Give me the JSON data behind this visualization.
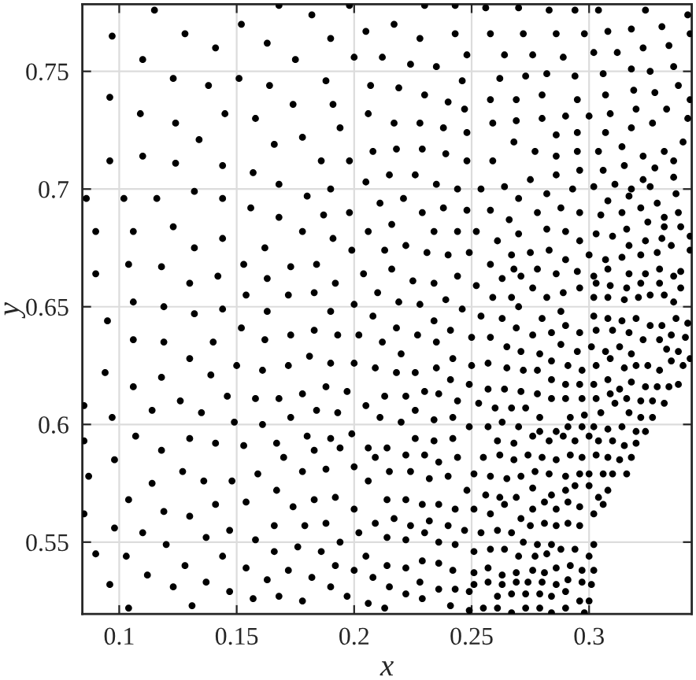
{
  "chart_data": {
    "type": "scatter",
    "xlabel": "x",
    "ylabel": "y",
    "color": "#000000",
    "marker": "circle",
    "grid": true,
    "xlim": [
      0.0843,
      0.3437
    ],
    "ylim": [
      0.5195,
      0.7785
    ],
    "xticks": [
      0.1,
      0.15,
      0.2,
      0.25,
      0.3
    ],
    "yticks": [
      0.55,
      0.6,
      0.65,
      0.7,
      0.75
    ],
    "x": [
      0.115,
      0.097,
      0.128,
      0.11,
      0.141,
      0.152,
      0.163,
      0.168,
      0.096,
      0.123,
      0.138,
      0.151,
      0.164,
      0.109,
      0.124,
      0.145,
      0.158,
      0.134,
      0.166,
      0.096,
      0.11,
      0.124,
      0.144,
      0.157,
      0.168,
      0.086,
      0.102,
      0.116,
      0.132,
      0.144,
      0.156,
      0.168,
      0.09,
      0.106,
      0.123,
      0.132,
      0.144,
      0.162,
      0.104,
      0.118,
      0.153,
      0.09,
      0.13,
      0.142,
      0.163,
      0.106,
      0.119,
      0.154,
      0.132,
      0.144,
      0.163,
      0.095,
      0.152,
      0.106,
      0.119,
      0.14,
      0.162,
      0.13,
      0.094,
      0.118,
      0.139,
      0.15,
      0.161,
      0.085,
      0.106,
      0.114,
      0.126,
      0.135,
      0.146,
      0.158,
      0.168,
      0.097,
      0.149,
      0.161,
      0.085,
      0.107,
      0.118,
      0.13,
      0.141,
      0.153,
      0.167,
      0.098,
      0.087,
      0.127,
      0.114,
      0.136,
      0.148,
      0.159,
      0.167,
      0.104,
      0.141,
      0.154,
      0.085,
      0.119,
      0.13,
      0.098,
      0.11,
      0.166,
      0.137,
      0.147,
      0.158,
      0.12,
      0.09,
      0.103,
      0.144,
      0.166,
      0.128,
      0.154,
      0.112,
      0.096,
      0.137,
      0.163,
      0.123,
      0.147,
      0.157,
      0.168,
      0.104,
      0.131,
      0.182,
      0.198,
      0.23,
      0.243,
      0.19,
      0.205,
      0.217,
      0.228,
      0.243,
      0.175,
      0.2,
      0.212,
      0.224,
      0.235,
      0.248,
      0.188,
      0.207,
      0.219,
      0.23,
      0.24,
      0.246,
      0.174,
      0.191,
      0.206,
      0.217,
      0.228,
      0.238,
      0.247,
      0.248,
      0.178,
      0.194,
      0.186,
      0.198,
      0.208,
      0.218,
      0.229,
      0.239,
      0.248,
      0.19,
      0.205,
      0.215,
      0.226,
      0.235,
      0.244,
      0.254,
      0.18,
      0.187,
      0.198,
      0.211,
      0.221,
      0.229,
      0.238,
      0.248,
      0.178,
      0.191,
      0.206,
      0.216,
      0.234,
      0.244,
      0.252,
      0.213,
      0.222,
      0.199,
      0.231,
      0.24,
      0.249,
      0.173,
      0.184,
      0.204,
      0.216,
      0.225,
      0.234,
      0.244,
      0.252,
      0.192,
      0.172,
      0.183,
      0.21,
      0.219,
      0.228,
      0.239,
      0.246,
      0.254,
      0.2,
      0.19,
      0.208,
      0.218,
      0.234,
      0.241,
      0.183,
      0.173,
      0.193,
      0.202,
      0.212,
      0.227,
      0.235,
      0.172,
      0.181,
      0.19,
      0.2,
      0.209,
      0.22,
      0.218,
      0.226,
      0.235,
      0.242,
      0.241,
      0.178,
      0.188,
      0.197,
      0.205,
      0.213,
      0.222,
      0.23,
      0.236,
      0.244,
      0.173,
      0.184,
      0.193,
      0.211,
      0.22,
      0.226,
      0.234,
      0.242,
      0.18,
      0.19,
      0.199,
      0.206,
      0.214,
      0.222,
      0.226,
      0.234,
      0.242,
      0.17,
      0.183,
      0.194,
      0.209,
      0.23,
      0.236,
      0.244,
      0.178,
      0.188,
      0.2,
      0.215,
      0.224,
      0.206,
      0.232,
      0.24,
      0.183,
      0.192,
      0.214,
      0.222,
      0.229,
      0.236,
      0.243,
      0.174,
      0.2,
      0.217,
      0.209,
      0.224,
      0.232,
      0.24,
      0.179,
      0.188,
      0.202,
      0.214,
      0.194,
      0.176,
      0.186,
      0.205,
      0.222,
      0.23,
      0.236,
      0.243,
      0.192,
      0.172,
      0.2,
      0.214,
      0.222,
      0.229,
      0.236,
      0.242,
      0.182,
      0.208,
      0.228,
      0.19,
      0.215,
      0.236,
      0.243,
      0.178,
      0.197,
      0.206,
      0.222,
      0.229,
      0.213,
      0.241,
      0.256,
      0.27,
      0.283,
      0.294,
      0.304,
      0.324,
      0.342,
      0.258,
      0.272,
      0.286,
      0.298,
      0.308,
      0.318,
      0.331,
      0.343,
      0.323,
      0.334,
      0.264,
      0.276,
      0.289,
      0.302,
      0.312,
      0.318,
      0.326,
      0.336,
      0.262,
      0.273,
      0.282,
      0.294,
      0.306,
      0.338,
      0.258,
      0.269,
      0.28,
      0.295,
      0.307,
      0.319,
      0.328,
      0.343,
      0.259,
      0.269,
      0.28,
      0.29,
      0.3,
      0.309,
      0.32,
      0.333,
      0.342,
      0.286,
      0.295,
      0.307,
      0.318,
      0.327,
      0.268,
      0.277,
      0.286,
      0.295,
      0.304,
      0.314,
      0.323,
      0.332,
      0.34,
      0.259,
      0.275,
      0.286,
      0.296,
      0.306,
      0.315,
      0.328,
      0.336,
      0.323,
      0.336,
      0.264,
      0.293,
      0.302,
      0.311,
      0.318,
      0.326,
      0.337,
      0.282,
      0.27,
      0.308,
      0.317,
      0.329,
      0.258,
      0.278,
      0.288,
      0.296,
      0.305,
      0.314,
      0.322,
      0.332,
      0.338,
      0.266,
      0.27,
      0.282,
      0.29,
      0.303,
      0.31,
      0.316,
      0.325,
      0.332,
      0.339,
      0.261,
      0.296,
      0.317,
      0.324,
      0.331,
      0.343,
      0.335,
      0.267,
      0.275,
      0.283,
      0.29,
      0.3,
      0.307,
      0.314,
      0.322,
      0.329,
      0.343,
      0.258,
      0.268,
      0.278,
      0.286,
      0.295,
      0.302,
      0.308,
      0.317,
      0.324,
      0.33,
      0.336,
      0.339,
      0.263,
      0.271,
      0.259,
      0.267,
      0.276,
      0.282,
      0.289,
      0.296,
      0.303,
      0.309,
      0.316,
      0.322,
      0.33,
      0.339,
      0.308,
      0.315,
      0.321,
      0.326,
      0.332,
      0.336,
      0.302,
      0.27,
      0.288,
      0.263,
      0.28,
      0.302,
      0.308,
      0.314,
      0.32,
      0.326,
      0.331,
      0.337,
      0.342,
      0.25,
      0.258,
      0.269,
      0.276,
      0.284,
      0.29,
      0.296,
      0.303,
      0.31,
      0.317,
      0.323,
      0.33,
      0.335,
      0.341,
      0.265,
      0.271,
      0.279,
      0.288,
      0.295,
      0.301,
      0.307,
      0.313,
      0.318,
      0.333,
      0.338,
      0.343,
      0.25,
      0.257,
      0.265,
      0.272,
      0.278,
      0.284,
      0.291,
      0.297,
      0.303,
      0.309,
      0.315,
      0.32,
      0.325,
      0.33,
      0.335,
      0.34,
      0.249,
      0.257,
      0.264,
      0.271,
      0.278,
      0.284,
      0.29,
      0.296,
      0.302,
      0.308,
      0.313,
      0.318,
      0.324,
      0.329,
      0.334,
      0.338,
      0.253,
      0.26,
      0.267,
      0.273,
      0.279,
      0.284,
      0.29,
      0.297,
      0.303,
      0.309,
      0.311,
      0.316,
      0.322,
      0.327,
      0.332,
      0.292,
      0.298,
      0.305,
      0.317,
      0.322,
      0.327,
      0.249,
      0.257,
      0.263,
      0.27,
      0.279,
      0.286,
      0.291,
      0.297,
      0.302,
      0.308,
      0.314,
      0.32,
      0.324,
      0.261,
      0.268,
      0.276,
      0.283,
      0.289,
      0.294,
      0.3,
      0.304,
      0.31,
      0.315,
      0.32,
      0.255,
      0.262,
      0.268,
      0.274,
      0.28,
      0.286,
      0.292,
      0.297,
      0.303,
      0.308,
      0.313,
      0.318,
      0.251,
      0.258,
      0.265,
      0.271,
      0.277,
      0.283,
      0.29,
      0.296,
      0.3,
      0.306,
      0.31,
      0.316,
      0.248,
      0.256,
      0.262,
      0.269,
      0.276,
      0.284,
      0.29,
      0.294,
      0.3,
      0.304,
      0.308,
      0.251,
      0.258,
      0.264,
      0.271,
      0.276,
      0.281,
      0.286,
      0.291,
      0.296,
      0.302,
      0.306,
      0.247,
      0.254,
      0.261,
      0.267,
      0.275,
      0.281,
      0.286,
      0.291,
      0.296,
      0.272,
      0.278,
      0.284,
      0.302,
      0.251,
      0.258,
      0.264,
      0.27,
      0.277,
      0.282,
      0.288,
      0.294,
      0.3,
      0.251,
      0.257,
      0.263,
      0.269,
      0.276,
      0.281,
      0.286,
      0.292,
      0.297,
      0.302,
      0.251,
      0.257,
      0.263,
      0.269,
      0.274,
      0.28,
      0.286,
      0.291,
      0.297,
      0.301,
      0.249,
      0.261,
      0.267,
      0.273,
      0.279,
      0.284,
      0.29,
      0.296,
      0.3,
      0.249,
      0.255,
      0.261,
      0.267,
      0.273,
      0.279,
      0.284,
      0.29,
      0.298
    ],
    "values": [
      0.776,
      0.765,
      0.766,
      0.755,
      0.76,
      0.77,
      0.762,
      0.778,
      0.739,
      0.747,
      0.744,
      0.747,
      0.744,
      0.732,
      0.728,
      0.732,
      0.73,
      0.721,
      0.719,
      0.712,
      0.714,
      0.711,
      0.71,
      0.707,
      0.702,
      0.696,
      0.696,
      0.696,
      0.699,
      0.696,
      0.692,
      0.688,
      0.682,
      0.682,
      0.684,
      0.675,
      0.679,
      0.675,
      0.668,
      0.667,
      0.668,
      0.664,
      0.66,
      0.663,
      0.662,
      0.652,
      0.65,
      0.655,
      0.647,
      0.649,
      0.648,
      0.644,
      0.641,
      0.636,
      0.635,
      0.635,
      0.636,
      0.628,
      0.622,
      0.62,
      0.621,
      0.625,
      0.623,
      0.608,
      0.616,
      0.606,
      0.61,
      0.605,
      0.612,
      0.611,
      0.611,
      0.603,
      0.601,
      0.6,
      0.593,
      0.595,
      0.589,
      0.594,
      0.592,
      0.591,
      0.592,
      0.585,
      0.578,
      0.58,
      0.575,
      0.576,
      0.576,
      0.579,
      0.572,
      0.568,
      0.566,
      0.567,
      0.562,
      0.563,
      0.561,
      0.556,
      0.554,
      0.557,
      0.552,
      0.555,
      0.551,
      0.549,
      0.545,
      0.544,
      0.544,
      0.546,
      0.54,
      0.539,
      0.536,
      0.532,
      0.533,
      0.534,
      0.531,
      0.529,
      0.526,
      0.527,
      0.522,
      0.523,
      0.774,
      0.778,
      0.778,
      0.778,
      0.764,
      0.767,
      0.77,
      0.764,
      0.766,
      0.755,
      0.756,
      0.756,
      0.753,
      0.752,
      0.757,
      0.746,
      0.744,
      0.743,
      0.74,
      0.737,
      0.746,
      0.736,
      0.736,
      0.732,
      0.728,
      0.728,
      0.726,
      0.734,
      0.724,
      0.722,
      0.726,
      0.712,
      0.712,
      0.716,
      0.717,
      0.717,
      0.715,
      0.712,
      0.7,
      0.703,
      0.706,
      0.706,
      0.702,
      0.7,
      0.7,
      0.697,
      0.689,
      0.69,
      0.694,
      0.696,
      0.69,
      0.692,
      0.691,
      0.682,
      0.679,
      0.682,
      0.685,
      0.682,
      0.682,
      0.682,
      0.674,
      0.676,
      0.674,
      0.673,
      0.672,
      0.673,
      0.667,
      0.668,
      0.664,
      0.666,
      0.661,
      0.66,
      0.663,
      0.659,
      0.66,
      0.655,
      0.656,
      0.656,
      0.652,
      0.651,
      0.653,
      0.649,
      0.646,
      0.651,
      0.648,
      0.646,
      0.641,
      0.644,
      0.64,
      0.64,
      0.638,
      0.638,
      0.638,
      0.635,
      0.638,
      0.635,
      0.625,
      0.629,
      0.626,
      0.626,
      0.624,
      0.63,
      0.622,
      0.622,
      0.624,
      0.628,
      0.619,
      0.613,
      0.616,
      0.614,
      0.608,
      0.612,
      0.612,
      0.614,
      0.613,
      0.61,
      0.603,
      0.606,
      0.605,
      0.603,
      0.601,
      0.606,
      0.602,
      0.603,
      0.595,
      0.594,
      0.596,
      0.59,
      0.59,
      0.587,
      0.594,
      0.593,
      0.594,
      0.586,
      0.589,
      0.59,
      0.586,
      0.587,
      0.584,
      0.586,
      0.58,
      0.581,
      0.582,
      0.58,
      0.58,
      0.576,
      0.577,
      0.578,
      0.568,
      0.569,
      0.568,
      0.568,
      0.566,
      0.566,
      0.564,
      0.565,
      0.564,
      0.56,
      0.558,
      0.557,
      0.559,
      0.557,
      0.557,
      0.558,
      0.554,
      0.552,
      0.55,
      0.548,
      0.546,
      0.544,
      0.551,
      0.554,
      0.55,
      0.549,
      0.54,
      0.538,
      0.538,
      0.54,
      0.539,
      0.542,
      0.541,
      0.538,
      0.535,
      0.535,
      0.533,
      0.531,
      0.531,
      0.53,
      0.53,
      0.525,
      0.527,
      0.524,
      0.528,
      0.526,
      0.522,
      0.523,
      0.777,
      0.777,
      0.776,
      0.776,
      0.776,
      0.776,
      0.774,
      0.766,
      0.766,
      0.766,
      0.766,
      0.767,
      0.768,
      0.769,
      0.766,
      0.76,
      0.761,
      0.757,
      0.757,
      0.756,
      0.758,
      0.758,
      0.751,
      0.75,
      0.752,
      0.747,
      0.748,
      0.749,
      0.748,
      0.749,
      0.744,
      0.738,
      0.738,
      0.74,
      0.738,
      0.74,
      0.742,
      0.741,
      0.738,
      0.728,
      0.729,
      0.73,
      0.731,
      0.731,
      0.732,
      0.734,
      0.734,
      0.73,
      0.723,
      0.724,
      0.724,
      0.726,
      0.728,
      0.72,
      0.716,
      0.714,
      0.716,
      0.716,
      0.718,
      0.714,
      0.716,
      0.72,
      0.712,
      0.704,
      0.706,
      0.708,
      0.708,
      0.71,
      0.709,
      0.712,
      0.704,
      0.705,
      0.701,
      0.7,
      0.701,
      0.702,
      0.7,
      0.701,
      0.698,
      0.698,
      0.696,
      0.695,
      0.697,
      0.694,
      0.691,
      0.69,
      0.692,
      0.69,
      0.689,
      0.69,
      0.692,
      0.688,
      0.69,
      0.687,
      0.681,
      0.683,
      0.682,
      0.681,
      0.68,
      0.683,
      0.686,
      0.684,
      0.684,
      0.678,
      0.678,
      0.676,
      0.678,
      0.679,
      0.68,
      0.676,
      0.672,
      0.673,
      0.674,
      0.67,
      0.672,
      0.67,
      0.671,
      0.672,
      0.673,
      0.674,
      0.668,
      0.666,
      0.666,
      0.664,
      0.665,
      0.663,
      0.666,
      0.664,
      0.664,
      0.666,
      0.663,
      0.665,
      0.662,
      0.663,
      0.654,
      0.654,
      0.658,
      0.654,
      0.656,
      0.658,
      0.66,
      0.659,
      0.658,
      0.66,
      0.66,
      0.658,
      0.654,
      0.653,
      0.654,
      0.655,
      0.655,
      0.652,
      0.654,
      0.65,
      0.648,
      0.645,
      0.645,
      0.646,
      0.645,
      0.644,
      0.645,
      0.642,
      0.642,
      0.645,
      0.643,
      0.637,
      0.637,
      0.641,
      0.638,
      0.639,
      0.642,
      0.639,
      0.64,
      0.64,
      0.639,
      0.636,
      0.636,
      0.638,
      0.637,
      0.633,
      0.631,
      0.63,
      0.634,
      0.631,
      0.633,
      0.631,
      0.633,
      0.63,
      0.632,
      0.631,
      0.628,
      0.625,
      0.626,
      0.624,
      0.623,
      0.623,
      0.627,
      0.625,
      0.623,
      0.625,
      0.628,
      0.624,
      0.625,
      0.625,
      0.623,
      0.627,
      0.625,
      0.617,
      0.615,
      0.615,
      0.614,
      0.613,
      0.619,
      0.617,
      0.617,
      0.617,
      0.619,
      0.615,
      0.618,
      0.616,
      0.616,
      0.616,
      0.617,
      0.609,
      0.607,
      0.607,
      0.607,
      0.603,
      0.611,
      0.611,
      0.611,
      0.611,
      0.613,
      0.609,
      0.611,
      0.61,
      0.61,
      0.609,
      0.603,
      0.604,
      0.605,
      0.605,
      0.603,
      0.603,
      0.599,
      0.599,
      0.601,
      0.599,
      0.597,
      0.597,
      0.599,
      0.599,
      0.599,
      0.598,
      0.599,
      0.597,
      0.597,
      0.593,
      0.592,
      0.595,
      0.593,
      0.595,
      0.593,
      0.595,
      0.593,
      0.593,
      0.591,
      0.592,
      0.586,
      0.587,
      0.585,
      0.587,
      0.586,
      0.585,
      0.587,
      0.586,
      0.587,
      0.586,
      0.585,
      0.586,
      0.579,
      0.578,
      0.577,
      0.578,
      0.58,
      0.579,
      0.578,
      0.579,
      0.579,
      0.579,
      0.579,
      0.579,
      0.572,
      0.57,
      0.569,
      0.569,
      0.573,
      0.57,
      0.572,
      0.574,
      0.574,
      0.569,
      0.572,
      0.564,
      0.562,
      0.566,
      0.56,
      0.564,
      0.567,
      0.564,
      0.567,
      0.565,
      0.562,
      0.566,
      0.555,
      0.554,
      0.555,
      0.554,
      0.557,
      0.558,
      0.557,
      0.558,
      0.557,
      0.55,
      0.549,
      0.549,
      0.549,
      0.546,
      0.547,
      0.547,
      0.544,
      0.544,
      0.545,
      0.547,
      0.547,
      0.544,
      0.537,
      0.539,
      0.536,
      0.537,
      0.538,
      0.537,
      0.539,
      0.54,
      0.538,
      0.538,
      0.532,
      0.533,
      0.532,
      0.533,
      0.533,
      0.533,
      0.532,
      0.534,
      0.533,
      0.532,
      0.529,
      0.527,
      0.528,
      0.528,
      0.528,
      0.527,
      0.529,
      0.525,
      0.525,
      0.521,
      0.522,
      0.522,
      0.52,
      0.522,
      0.522,
      0.52,
      0.522,
      0.52
    ]
  }
}
